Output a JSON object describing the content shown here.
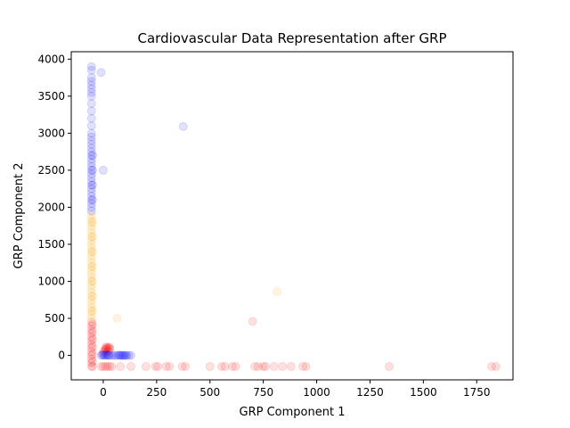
{
  "chart_data": {
    "type": "scatter",
    "title": "Cardiovascular Data Representation after GRP",
    "xlabel": "GRP Component 1",
    "ylabel": "GRP Component 2",
    "xlim": [
      -150,
      1920
    ],
    "ylim": [
      -330,
      4100
    ],
    "xticks": [
      0,
      250,
      500,
      750,
      1000,
      1250,
      1500,
      1750
    ],
    "yticks": [
      0,
      500,
      1000,
      1500,
      2000,
      2500,
      3000,
      3500,
      4000
    ],
    "grid": false,
    "legend": "none",
    "point_alpha": 0.12,
    "colors": {
      "red": "#ff0000",
      "orange": "#ffa500",
      "blue": "#0000ff"
    },
    "series": [
      {
        "color": "red",
        "points": [
          [
            -55,
            -150
          ],
          [
            -55,
            -100
          ],
          [
            -55,
            -50
          ],
          [
            -55,
            0
          ],
          [
            -55,
            50
          ],
          [
            -55,
            100
          ],
          [
            -55,
            150
          ],
          [
            -55,
            200
          ],
          [
            -55,
            250
          ],
          [
            -55,
            300
          ],
          [
            -55,
            350
          ],
          [
            -55,
            400
          ],
          [
            -55,
            450
          ],
          [
            -50,
            -150
          ],
          [
            -50,
            -80
          ],
          [
            -50,
            20
          ],
          [
            -50,
            120
          ],
          [
            -50,
            220
          ],
          [
            -50,
            320
          ],
          [
            -50,
            420
          ],
          [
            -10,
            -150
          ],
          [
            0,
            -150
          ],
          [
            10,
            -150
          ],
          [
            20,
            -150
          ],
          [
            30,
            -150
          ],
          [
            40,
            -150
          ],
          [
            80,
            -150
          ],
          [
            130,
            -150
          ],
          [
            200,
            -150
          ],
          [
            245,
            -150
          ],
          [
            255,
            -150
          ],
          [
            295,
            -150
          ],
          [
            310,
            -150
          ],
          [
            370,
            -150
          ],
          [
            385,
            -150
          ],
          [
            500,
            -150
          ],
          [
            555,
            -150
          ],
          [
            570,
            -150
          ],
          [
            605,
            -150
          ],
          [
            620,
            -150
          ],
          [
            710,
            -150
          ],
          [
            725,
            -150
          ],
          [
            750,
            -150
          ],
          [
            760,
            -150
          ],
          [
            800,
            -150
          ],
          [
            840,
            -150
          ],
          [
            880,
            -150
          ],
          [
            935,
            -150
          ],
          [
            950,
            -150
          ],
          [
            1340,
            -150
          ],
          [
            1820,
            -150
          ],
          [
            1840,
            -150
          ],
          [
            700,
            460
          ],
          [
            5,
            60
          ],
          [
            10,
            80
          ],
          [
            15,
            90
          ],
          [
            20,
            100
          ],
          [
            25,
            110
          ],
          [
            30,
            105
          ],
          [
            15,
            120
          ],
          [
            25,
            70
          ],
          [
            20,
            50
          ],
          [
            30,
            90
          ],
          [
            10,
            100
          ],
          [
            0,
            40
          ]
        ]
      },
      {
        "color": "orange",
        "points": [
          [
            -55,
            500
          ],
          [
            -55,
            550
          ],
          [
            -55,
            600
          ],
          [
            -55,
            650
          ],
          [
            -55,
            700
          ],
          [
            -55,
            750
          ],
          [
            -55,
            800
          ],
          [
            -55,
            850
          ],
          [
            -55,
            900
          ],
          [
            -55,
            950
          ],
          [
            -55,
            1000
          ],
          [
            -55,
            1050
          ],
          [
            -55,
            1100
          ],
          [
            -55,
            1150
          ],
          [
            -55,
            1200
          ],
          [
            -55,
            1250
          ],
          [
            -55,
            1300
          ],
          [
            -55,
            1350
          ],
          [
            -55,
            1400
          ],
          [
            -55,
            1450
          ],
          [
            -55,
            1500
          ],
          [
            -55,
            1550
          ],
          [
            -55,
            1600
          ],
          [
            -55,
            1650
          ],
          [
            -55,
            1700
          ],
          [
            -55,
            1750
          ],
          [
            -55,
            1800
          ],
          [
            -55,
            1850
          ],
          [
            -55,
            1900
          ],
          [
            -50,
            600
          ],
          [
            -50,
            800
          ],
          [
            -50,
            1000
          ],
          [
            -50,
            1200
          ],
          [
            -50,
            1400
          ],
          [
            -50,
            1600
          ],
          [
            -50,
            1800
          ],
          [
            65,
            500
          ],
          [
            815,
            860
          ]
        ]
      },
      {
        "color": "blue",
        "points": [
          [
            -55,
            1950
          ],
          [
            -55,
            2000
          ],
          [
            -55,
            2050
          ],
          [
            -55,
            2100
          ],
          [
            -55,
            2150
          ],
          [
            -55,
            2200
          ],
          [
            -55,
            2250
          ],
          [
            -55,
            2300
          ],
          [
            -55,
            2350
          ],
          [
            -55,
            2400
          ],
          [
            -55,
            2450
          ],
          [
            -55,
            2500
          ],
          [
            -55,
            2550
          ],
          [
            -55,
            2600
          ],
          [
            -55,
            2650
          ],
          [
            -55,
            2700
          ],
          [
            -55,
            2750
          ],
          [
            -55,
            2800
          ],
          [
            -55,
            2850
          ],
          [
            -55,
            2900
          ],
          [
            -55,
            2950
          ],
          [
            -55,
            3000
          ],
          [
            -55,
            3100
          ],
          [
            -55,
            3200
          ],
          [
            -55,
            3300
          ],
          [
            -55,
            3400
          ],
          [
            -55,
            3500
          ],
          [
            -55,
            3550
          ],
          [
            -55,
            3600
          ],
          [
            -55,
            3650
          ],
          [
            -55,
            3700
          ],
          [
            -55,
            3750
          ],
          [
            -55,
            3850
          ],
          [
            -55,
            3900
          ],
          [
            -50,
            2100
          ],
          [
            -50,
            2300
          ],
          [
            -50,
            2500
          ],
          [
            -50,
            2700
          ],
          [
            -10,
            3820
          ],
          [
            0,
            2500
          ],
          [
            375,
            3090
          ],
          [
            -10,
            0
          ],
          [
            -5,
            10
          ],
          [
            0,
            5
          ],
          [
            5,
            0
          ],
          [
            10,
            10
          ],
          [
            15,
            0
          ],
          [
            20,
            5
          ],
          [
            25,
            0
          ],
          [
            30,
            0
          ],
          [
            40,
            0
          ],
          [
            50,
            0
          ],
          [
            60,
            0
          ],
          [
            70,
            0
          ],
          [
            75,
            5
          ],
          [
            80,
            0
          ],
          [
            85,
            0
          ],
          [
            90,
            0
          ],
          [
            95,
            0
          ],
          [
            100,
            0
          ],
          [
            105,
            0
          ],
          [
            110,
            0
          ],
          [
            120,
            0
          ],
          [
            130,
            0
          ]
        ]
      }
    ]
  }
}
